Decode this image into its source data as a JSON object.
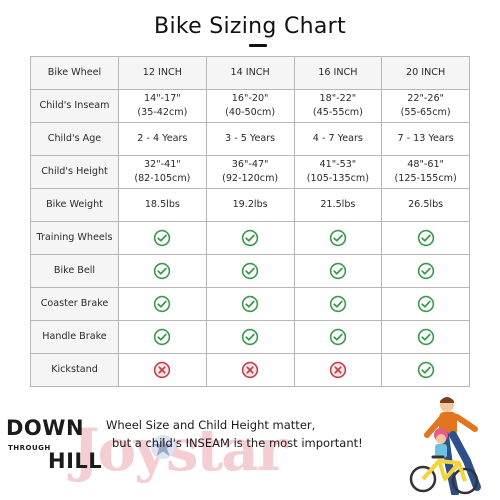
{
  "title": "Bike Sizing Chart",
  "table": {
    "header": {
      "label": "Bike Wheel",
      "cols": [
        "12 INCH",
        "14 INCH",
        "16 INCH",
        "20 INCH"
      ]
    },
    "text_rows": [
      {
        "label": "Child's Inseam",
        "cells": [
          [
            "14\"-17\"",
            "(35-42cm)"
          ],
          [
            "16\"-20\"",
            "(40-50cm)"
          ],
          [
            "18\"-22\"",
            "(45-55cm)"
          ],
          [
            "22\"-26\"",
            "(55-65cm)"
          ]
        ]
      },
      {
        "label": "Child's Age",
        "cells": [
          [
            "2 - 4 Years"
          ],
          [
            "3 - 5 Years"
          ],
          [
            "4 - 7 Years"
          ],
          [
            "7 - 13 Years"
          ]
        ]
      },
      {
        "label": "Child's Height",
        "cells": [
          [
            "32\"-41\"",
            "(82-105cm)"
          ],
          [
            "36\"-47\"",
            "(92-120cm)"
          ],
          [
            "41\"-53\"",
            "(105-135cm)"
          ],
          [
            "48\"-61\"",
            "(125-155cm)"
          ]
        ]
      },
      {
        "label": "Bike Weight",
        "cells": [
          [
            "18.5lbs"
          ],
          [
            "19.2lbs"
          ],
          [
            "21.5lbs"
          ],
          [
            "26.5lbs"
          ]
        ]
      }
    ],
    "feature_rows": [
      {
        "label": "Training Wheels",
        "values": [
          true,
          true,
          true,
          true
        ]
      },
      {
        "label": "Bike Bell",
        "values": [
          true,
          true,
          true,
          true
        ]
      },
      {
        "label": "Coaster Brake",
        "values": [
          true,
          true,
          true,
          true
        ]
      },
      {
        "label": "Handle Brake",
        "values": [
          true,
          true,
          true,
          true
        ]
      },
      {
        "label": "Kickstand",
        "values": [
          false,
          false,
          false,
          true
        ]
      }
    ]
  },
  "colors": {
    "check": "#3a9a4e",
    "cross": "#c0424e",
    "logo_pink": "#f4c9cf"
  },
  "icons": {
    "yes": "check-circle-icon",
    "no": "x-circle-icon"
  },
  "footer": {
    "line1": "Wheel Size and Child Height matter,",
    "line2": "but a child's INSEAM is the most important!"
  },
  "logo": {
    "down": "DOWN",
    "through": "THROUGH",
    "hill": "HILL",
    "watermark": "Joystar"
  }
}
